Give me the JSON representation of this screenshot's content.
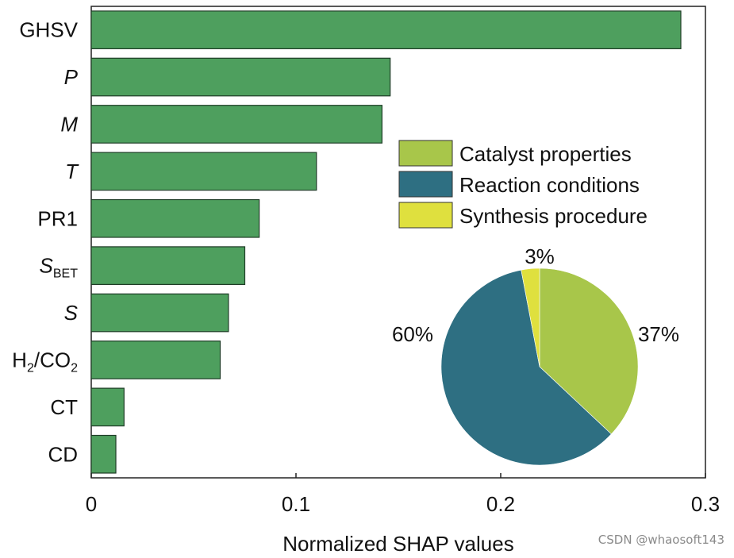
{
  "chart_data": [
    {
      "type": "bar",
      "orientation": "horizontal",
      "categories": [
        "GHSV",
        "P",
        "M",
        "T",
        "PR1",
        "S_BET",
        "S",
        "H2/CO2",
        "CT",
        "CD"
      ],
      "category_display": [
        {
          "base": "GHSV",
          "sub": "",
          "suffix": "",
          "italic": false
        },
        {
          "base": "P",
          "sub": "",
          "suffix": "",
          "italic": true
        },
        {
          "base": "M",
          "sub": "",
          "suffix": "",
          "italic": true
        },
        {
          "base": "T",
          "sub": "",
          "suffix": "",
          "italic": true
        },
        {
          "base": "PR1",
          "sub": "",
          "suffix": "",
          "italic": false
        },
        {
          "base": "S",
          "sub": "BET",
          "suffix": "",
          "italic": true
        },
        {
          "base": "S",
          "sub": "",
          "suffix": "",
          "italic": true
        },
        {
          "base": "H",
          "sub": "2",
          "suffix": "/CO",
          "suffix_sub": "2",
          "italic": false
        },
        {
          "base": "CT",
          "sub": "",
          "suffix": "",
          "italic": false
        },
        {
          "base": "CD",
          "sub": "",
          "suffix": "",
          "italic": false
        }
      ],
      "values": [
        0.288,
        0.146,
        0.142,
        0.11,
        0.082,
        0.075,
        0.067,
        0.063,
        0.016,
        0.012
      ],
      "bar_color": "#4e9f5e",
      "bar_edge_color": "#1f3d27",
      "xlim": [
        0,
        0.3
      ],
      "xticks": [
        0,
        0.1,
        0.2,
        0.3
      ],
      "xtick_labels": [
        "0",
        "0.1",
        "0.2",
        "0.3"
      ],
      "xlabel": "Normalized SHAP values",
      "ylabel": "",
      "title": ""
    },
    {
      "type": "pie",
      "labels": [
        "Catalyst properties",
        "Reaction conditions",
        "Synthesis procedure"
      ],
      "values": [
        37,
        60,
        3
      ],
      "value_labels": [
        "37%",
        "60%",
        "3%"
      ],
      "colors": [
        "#a8c64a",
        "#2e6f82",
        "#dfe03e"
      ],
      "legend_location": "upper-right"
    }
  ],
  "watermark": "CSDN @whaosoft143"
}
